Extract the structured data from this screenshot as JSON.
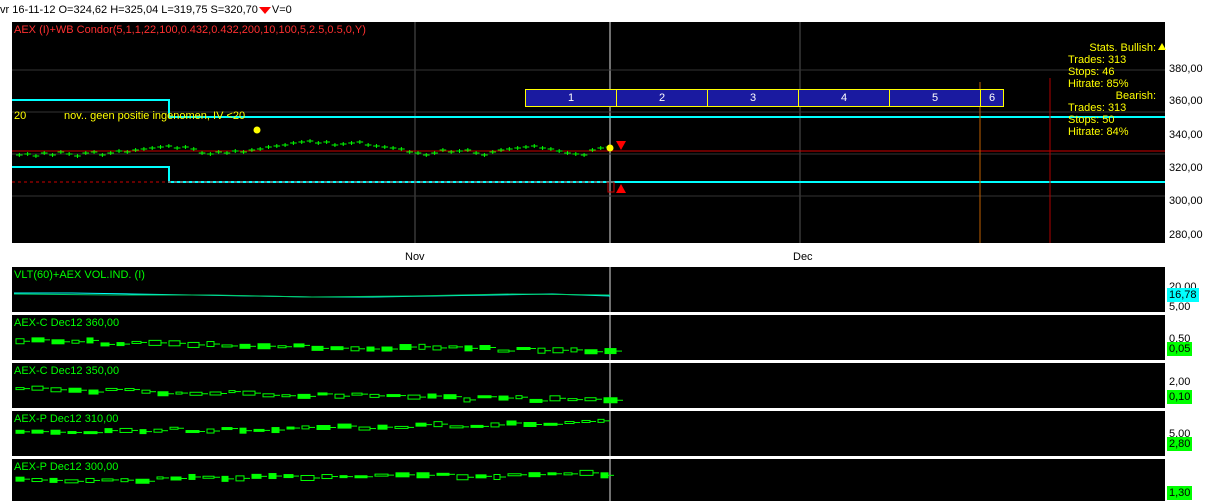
{
  "header": {
    "date": "vr 16-11-12",
    "open": "O=324,62",
    "high": "H=325,04",
    "low": "L=319,75",
    "settle": "S=320,70",
    "volume": "V=0"
  },
  "main_chart": {
    "title": "AEX (I)+WB Condor(5,1,1,22,100,0.432,0.432,200,10,100,5,2.5,0.5,0,Y)",
    "annotation": "nov.. geen positie ingenomen, IV <20",
    "left_tag": "20",
    "y_ticks": [
      "380,00",
      "360,00",
      "340,00",
      "320,00",
      "300,00",
      "280,00"
    ],
    "x_ticks": [
      "Nov",
      "Dec"
    ],
    "period_boxes": [
      "1",
      "2",
      "3",
      "4",
      "5",
      "6"
    ],
    "stats": {
      "bullish_label": "Stats. Bullish:",
      "bullish_trades": "Trades:  313",
      "bullish_stops": "Stops:   46",
      "bullish_hitrate": "Hitrate:  85%",
      "bearish_label": "Bearish:",
      "bearish_trades": "Trades:  313",
      "bearish_stops": "Stops:   50",
      "bearish_hitrate": "Hitrate:  84%"
    }
  },
  "sub_panels": [
    {
      "title": "VLT(60)+AEX VOL.IND. (I)",
      "scale_top": "20,00",
      "scale_bottom": "5,00",
      "value": "16,78"
    },
    {
      "title": "AEX-C Dec12 360,00",
      "scale_top": "0,50",
      "value": "0,05"
    },
    {
      "title": "AEX-C Dec12 350,00",
      "scale_top": "2,00",
      "value": "0,10"
    },
    {
      "title": "AEX-P Dec12 310,00",
      "scale_top": "5,00",
      "value": "2,80"
    },
    {
      "title": "AEX-P Dec12 300,00",
      "value": "1,30"
    }
  ],
  "colors": {
    "background": "#000000",
    "price": "#00ff00",
    "band": "#00ffff",
    "title_main": "#ff3030",
    "text_yellow": "#ffff00",
    "box_fill": "#1a1aa0",
    "box_border": "#ffff00"
  }
}
